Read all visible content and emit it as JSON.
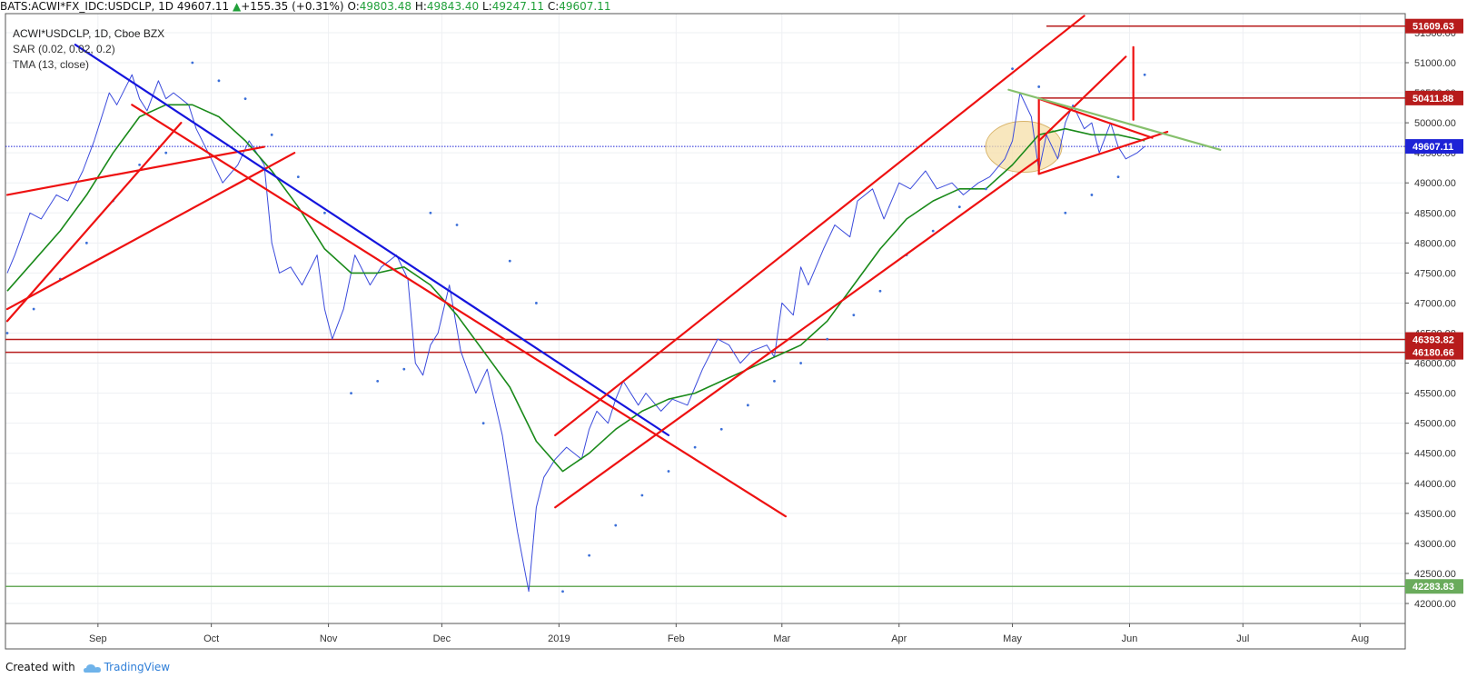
{
  "header": {
    "symbol": "BATS:ACWI*FX_IDC:USDCLP, 1D",
    "last": "49607.11",
    "change": "+155.35 (+0.31%)",
    "open_label": "O:",
    "open": "49803.48",
    "high_label": "H:",
    "high": "49843.40",
    "low_label": "L:",
    "low": "49247.11",
    "close_label": "C:",
    "close": "49607.11"
  },
  "legend": {
    "line1": "ACWI*USDCLP, 1D, Cboe BZX",
    "line2": "SAR (0.02, 0.02, 0.2)",
    "line3": "TMA (13, close)"
  },
  "footer": {
    "created_with": "Created with",
    "brand": "TradingView"
  },
  "colors": {
    "price": "#3b4bdc",
    "tma": "#1a8a1a",
    "sar": "#3b6fd8",
    "trend_red": "#ee1111",
    "trend_blue": "#1515dd",
    "trend_green": "#86c06c",
    "up": "#21a03a",
    "level_green": "#7cba6e",
    "last_price": "#1e23d6"
  },
  "chart_data": {
    "type": "line",
    "title": "ACWI*USDCLP, 1D, Cboe BZX",
    "xlabel": "",
    "ylabel": "",
    "y_range": [
      41700,
      51700
    ],
    "x_range": [
      "2018-08-08",
      "2019-08-05"
    ],
    "x_ticks": [
      {
        "label": "Sep",
        "date": "2018-09-01"
      },
      {
        "label": "Oct",
        "date": "2018-10-01"
      },
      {
        "label": "Nov",
        "date": "2018-11-01"
      },
      {
        "label": "Dec",
        "date": "2018-12-01"
      },
      {
        "label": "2019",
        "date": "2019-01-01"
      },
      {
        "label": "Feb",
        "date": "2019-02-01"
      },
      {
        "label": "Mar",
        "date": "2019-03-01"
      },
      {
        "label": "Apr",
        "date": "2019-04-01"
      },
      {
        "label": "May",
        "date": "2019-05-01"
      },
      {
        "label": "Jun",
        "date": "2019-06-01"
      },
      {
        "label": "Jul",
        "date": "2019-07-01"
      },
      {
        "label": "Aug",
        "date": "2019-08-01"
      }
    ],
    "y_ticks": [
      "42000.00",
      "42500.00",
      "43000.00",
      "43500.00",
      "44000.00",
      "44500.00",
      "45000.00",
      "45500.00",
      "46000.00",
      "46500.00",
      "47000.00",
      "47500.00",
      "48000.00",
      "48500.00",
      "49000.00",
      "49500.00",
      "50000.00",
      "50500.00",
      "51000.00",
      "51500.00"
    ],
    "series": [
      {
        "role": "price",
        "points": [
          [
            "2018-08-08",
            47500
          ],
          [
            "2018-08-10",
            47800
          ],
          [
            "2018-08-14",
            48500
          ],
          [
            "2018-08-17",
            48400
          ],
          [
            "2018-08-21",
            48800
          ],
          [
            "2018-08-24",
            48700
          ],
          [
            "2018-08-28",
            49200
          ],
          [
            "2018-08-31",
            49700
          ],
          [
            "2018-09-04",
            50500
          ],
          [
            "2018-09-06",
            50300
          ],
          [
            "2018-09-10",
            50800
          ],
          [
            "2018-09-12",
            50400
          ],
          [
            "2018-09-14",
            50200
          ],
          [
            "2018-09-17",
            50700
          ],
          [
            "2018-09-19",
            50400
          ],
          [
            "2018-09-21",
            50500
          ],
          [
            "2018-09-25",
            50300
          ],
          [
            "2018-09-27",
            49900
          ],
          [
            "2018-10-01",
            49400
          ],
          [
            "2018-10-04",
            49000
          ],
          [
            "2018-10-08",
            49300
          ],
          [
            "2018-10-11",
            49700
          ],
          [
            "2018-10-15",
            49300
          ],
          [
            "2018-10-17",
            48000
          ],
          [
            "2018-10-19",
            47500
          ],
          [
            "2018-10-22",
            47600
          ],
          [
            "2018-10-25",
            47300
          ],
          [
            "2018-10-29",
            47800
          ],
          [
            "2018-10-31",
            46900
          ],
          [
            "2018-11-02",
            46400
          ],
          [
            "2018-11-05",
            46900
          ],
          [
            "2018-11-08",
            47800
          ],
          [
            "2018-11-12",
            47300
          ],
          [
            "2018-11-15",
            47600
          ],
          [
            "2018-11-19",
            47800
          ],
          [
            "2018-11-22",
            47400
          ],
          [
            "2018-11-24",
            46000
          ],
          [
            "2018-11-26",
            45800
          ],
          [
            "2018-11-28",
            46300
          ],
          [
            "2018-11-30",
            46500
          ],
          [
            "2018-12-03",
            47300
          ],
          [
            "2018-12-06",
            46200
          ],
          [
            "2018-12-10",
            45500
          ],
          [
            "2018-12-13",
            45900
          ],
          [
            "2018-12-17",
            44800
          ],
          [
            "2018-12-19",
            44000
          ],
          [
            "2018-12-21",
            43200
          ],
          [
            "2018-12-24",
            42200
          ],
          [
            "2018-12-26",
            43600
          ],
          [
            "2018-12-28",
            44100
          ],
          [
            "2018-12-31",
            44400
          ],
          [
            "2019-01-03",
            44600
          ],
          [
            "2019-01-07",
            44400
          ],
          [
            "2019-01-09",
            44900
          ],
          [
            "2019-01-11",
            45200
          ],
          [
            "2019-01-14",
            45000
          ],
          [
            "2019-01-16",
            45400
          ],
          [
            "2019-01-18",
            45700
          ],
          [
            "2019-01-22",
            45300
          ],
          [
            "2019-01-24",
            45500
          ],
          [
            "2019-01-28",
            45200
          ],
          [
            "2019-01-31",
            45400
          ],
          [
            "2019-02-04",
            45300
          ],
          [
            "2019-02-06",
            45600
          ],
          [
            "2019-02-08",
            45900
          ],
          [
            "2019-02-12",
            46400
          ],
          [
            "2019-02-15",
            46300
          ],
          [
            "2019-02-18",
            46000
          ],
          [
            "2019-02-21",
            46200
          ],
          [
            "2019-02-25",
            46300
          ],
          [
            "2019-02-27",
            46100
          ],
          [
            "2019-03-01",
            47000
          ],
          [
            "2019-03-04",
            46800
          ],
          [
            "2019-03-06",
            47600
          ],
          [
            "2019-03-08",
            47300
          ],
          [
            "2019-03-12",
            47900
          ],
          [
            "2019-03-15",
            48300
          ],
          [
            "2019-03-19",
            48100
          ],
          [
            "2019-03-21",
            48700
          ],
          [
            "2019-03-25",
            48900
          ],
          [
            "2019-03-28",
            48400
          ],
          [
            "2019-04-01",
            49000
          ],
          [
            "2019-04-04",
            48900
          ],
          [
            "2019-04-08",
            49200
          ],
          [
            "2019-04-11",
            48900
          ],
          [
            "2019-04-15",
            49000
          ],
          [
            "2019-04-18",
            48800
          ],
          [
            "2019-04-22",
            49000
          ],
          [
            "2019-04-25",
            49100
          ],
          [
            "2019-04-29",
            49400
          ],
          [
            "2019-05-01",
            49700
          ],
          [
            "2019-05-03",
            50500
          ],
          [
            "2019-05-06",
            50100
          ],
          [
            "2019-05-08",
            49200
          ],
          [
            "2019-05-10",
            49800
          ],
          [
            "2019-05-13",
            49400
          ],
          [
            "2019-05-15",
            50000
          ],
          [
            "2019-05-17",
            50300
          ],
          [
            "2019-05-20",
            49900
          ],
          [
            "2019-05-22",
            50000
          ],
          [
            "2019-05-24",
            49500
          ],
          [
            "2019-05-27",
            50000
          ],
          [
            "2019-05-29",
            49600
          ],
          [
            "2019-05-31",
            49400
          ],
          [
            "2019-06-03",
            49500
          ],
          [
            "2019-06-05",
            49607
          ]
        ]
      },
      {
        "role": "TMA",
        "points": [
          [
            "2018-08-08",
            47200
          ],
          [
            "2018-08-15",
            47700
          ],
          [
            "2018-08-22",
            48200
          ],
          [
            "2018-08-29",
            48800
          ],
          [
            "2018-09-05",
            49500
          ],
          [
            "2018-09-12",
            50100
          ],
          [
            "2018-09-19",
            50300
          ],
          [
            "2018-09-26",
            50300
          ],
          [
            "2018-10-03",
            50100
          ],
          [
            "2018-10-10",
            49700
          ],
          [
            "2018-10-17",
            49200
          ],
          [
            "2018-10-24",
            48600
          ],
          [
            "2018-10-31",
            47900
          ],
          [
            "2018-11-07",
            47500
          ],
          [
            "2018-11-14",
            47500
          ],
          [
            "2018-11-21",
            47600
          ],
          [
            "2018-11-28",
            47300
          ],
          [
            "2018-12-05",
            46800
          ],
          [
            "2018-12-12",
            46200
          ],
          [
            "2018-12-19",
            45600
          ],
          [
            "2018-12-26",
            44700
          ],
          [
            "2019-01-02",
            44200
          ],
          [
            "2019-01-09",
            44500
          ],
          [
            "2019-01-16",
            44900
          ],
          [
            "2019-01-23",
            45200
          ],
          [
            "2019-01-30",
            45400
          ],
          [
            "2019-02-06",
            45500
          ],
          [
            "2019-02-13",
            45700
          ],
          [
            "2019-02-20",
            45900
          ],
          [
            "2019-02-27",
            46100
          ],
          [
            "2019-03-06",
            46300
          ],
          [
            "2019-03-13",
            46700
          ],
          [
            "2019-03-20",
            47300
          ],
          [
            "2019-03-27",
            47900
          ],
          [
            "2019-04-03",
            48400
          ],
          [
            "2019-04-10",
            48700
          ],
          [
            "2019-04-17",
            48900
          ],
          [
            "2019-04-24",
            48900
          ],
          [
            "2019-05-01",
            49300
          ],
          [
            "2019-05-08",
            49800
          ],
          [
            "2019-05-15",
            49900
          ],
          [
            "2019-05-22",
            49800
          ],
          [
            "2019-05-29",
            49800
          ],
          [
            "2019-06-05",
            49700
          ]
        ]
      },
      {
        "role": "SAR",
        "points": [
          [
            "2018-08-08",
            46500
          ],
          [
            "2018-08-15",
            46900
          ],
          [
            "2018-08-22",
            47400
          ],
          [
            "2018-08-29",
            48000
          ],
          [
            "2018-09-05",
            48700
          ],
          [
            "2018-09-12",
            49300
          ],
          [
            "2018-09-19",
            49500
          ],
          [
            "2018-09-26",
            51000
          ],
          [
            "2018-10-03",
            50700
          ],
          [
            "2018-10-10",
            50400
          ],
          [
            "2018-10-17",
            49800
          ],
          [
            "2018-10-24",
            49100
          ],
          [
            "2018-10-31",
            48500
          ],
          [
            "2018-11-07",
            45500
          ],
          [
            "2018-11-14",
            45700
          ],
          [
            "2018-11-21",
            45900
          ],
          [
            "2018-11-28",
            48500
          ],
          [
            "2018-12-05",
            48300
          ],
          [
            "2018-12-12",
            45000
          ],
          [
            "2018-12-19",
            47700
          ],
          [
            "2018-12-26",
            47000
          ],
          [
            "2019-01-02",
            42200
          ],
          [
            "2019-01-09",
            42800
          ],
          [
            "2019-01-16",
            43300
          ],
          [
            "2019-01-23",
            43800
          ],
          [
            "2019-01-30",
            44200
          ],
          [
            "2019-02-06",
            44600
          ],
          [
            "2019-02-13",
            44900
          ],
          [
            "2019-02-20",
            45300
          ],
          [
            "2019-02-27",
            45700
          ],
          [
            "2019-03-06",
            46000
          ],
          [
            "2019-03-13",
            46400
          ],
          [
            "2019-03-20",
            46800
          ],
          [
            "2019-03-27",
            47200
          ],
          [
            "2019-04-03",
            47800
          ],
          [
            "2019-04-10",
            48200
          ],
          [
            "2019-04-17",
            48600
          ],
          [
            "2019-04-24",
            48900
          ],
          [
            "2019-05-01",
            50900
          ],
          [
            "2019-05-08",
            50600
          ],
          [
            "2019-05-15",
            48500
          ],
          [
            "2019-05-22",
            48800
          ],
          [
            "2019-05-29",
            49100
          ],
          [
            "2019-06-05",
            50800
          ]
        ]
      }
    ],
    "horizontal_levels": [
      {
        "value": 51609.63,
        "label": "51609.63",
        "color": "#b71c1c",
        "line_from": "2019-05-10"
      },
      {
        "value": 50411.88,
        "label": "50411.88",
        "color": "#b71c1c",
        "line_from": "2019-05-08"
      },
      {
        "value": 49607.11,
        "label": "49607.11",
        "color": "#1e23d6",
        "dotted": true
      },
      {
        "value": 46393.82,
        "label": "46393.82",
        "color": "#b71c1c"
      },
      {
        "value": 46180.66,
        "label": "46180.66",
        "color": "#b71c1c"
      },
      {
        "value": 42283.83,
        "label": "42283.83",
        "color": "#6aab5c"
      }
    ],
    "trendlines": [
      {
        "color": "#ee1111",
        "from": [
          "2018-08-08",
          48800
        ],
        "to": [
          "2018-10-15",
          49600
        ]
      },
      {
        "color": "#ee1111",
        "from": [
          "2018-08-08",
          46900
        ],
        "to": [
          "2018-10-23",
          49500
        ]
      },
      {
        "color": "#ee1111",
        "from": [
          "2018-08-08",
          46700
        ],
        "to": [
          "2018-09-23",
          50000
        ]
      },
      {
        "color": "#ee1111",
        "from": [
          "2018-09-10",
          50300
        ],
        "to": [
          "2019-03-02",
          43450
        ]
      },
      {
        "color": "#1515dd",
        "from": [
          "2018-08-26",
          51300
        ],
        "to": [
          "2019-01-30",
          44800
        ]
      },
      {
        "color": "#ee1111",
        "from": [
          "2018-12-31",
          44800
        ],
        "to": [
          "2019-05-20",
          51780
        ]
      },
      {
        "color": "#ee1111",
        "from": [
          "2018-12-31",
          43600
        ],
        "to": [
          "2019-05-08",
          49400
        ]
      },
      {
        "color": "#ee1111",
        "from": [
          "2019-05-08",
          49150
        ],
        "to": [
          "2019-06-11",
          49850
        ]
      },
      {
        "color": "#ee1111",
        "from": [
          "2019-05-08",
          49700
        ],
        "to": [
          "2019-05-31",
          51100
        ]
      },
      {
        "color": "#ee1111",
        "from": [
          "2019-05-08",
          50400
        ],
        "to": [
          "2019-06-07",
          49750
        ]
      },
      {
        "color": "#ee1111",
        "from": [
          "2019-05-08",
          50411.88
        ],
        "to": [
          "2019-05-08",
          49150
        ]
      },
      {
        "color": "#ee1111",
        "from": [
          "2019-06-02",
          51260
        ],
        "to": [
          "2019-06-02",
          50050
        ]
      },
      {
        "color": "#86c06c",
        "from": [
          "2019-04-30",
          50550
        ],
        "to": [
          "2019-06-25",
          49550
        ]
      }
    ],
    "annotations": [
      {
        "shape": "ellipse",
        "center": [
          "2019-05-04",
          49600
        ],
        "fill": "#f6dfa8",
        "stroke": "#d8b46a"
      }
    ]
  }
}
